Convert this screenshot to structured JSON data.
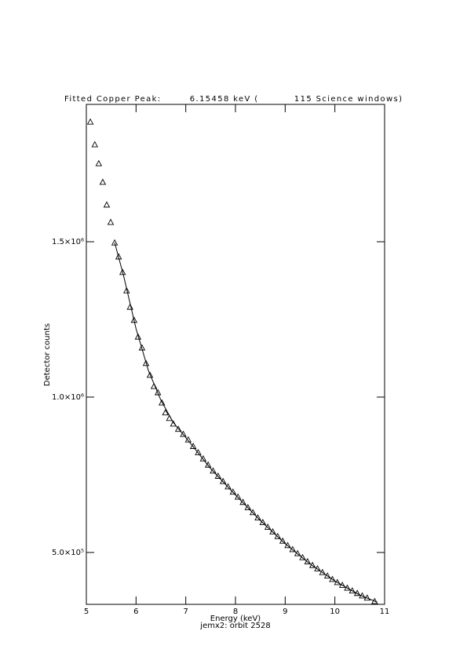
{
  "chart_data": {
    "type": "scatter",
    "title": "Fitted Copper Peak:        6.15458 keV (          115 Science windows)",
    "x_label": "Energy (keV)",
    "subtitle": "jemx2: orbit 2528",
    "y_label": "Detector counts",
    "xlim": [
      5,
      11
    ],
    "xticks": [
      5,
      6,
      7,
      8,
      9,
      10,
      11
    ],
    "ylim": [
      333000,
      1942000
    ],
    "yticks": [
      {
        "value": 500000,
        "label": "5.0×10⁵"
      },
      {
        "value": 1000000,
        "label": "1.0×10⁶"
      },
      {
        "value": 1500000,
        "label": "1.5×10⁶"
      }
    ],
    "color": "#000000",
    "series": [
      {
        "type": "scatter",
        "marker": "triangle",
        "x": [
          5.08,
          5.17,
          5.25,
          5.33,
          5.41,
          5.49,
          5.57,
          5.65,
          5.73,
          5.81,
          5.88,
          5.96,
          6.04,
          6.12,
          6.2,
          6.28,
          6.36,
          6.44,
          6.52,
          6.59,
          6.67,
          6.75,
          6.85,
          6.95,
          7.05,
          7.15,
          7.25,
          7.35,
          7.45,
          7.55,
          7.65,
          7.75,
          7.85,
          7.95,
          8.05,
          8.15,
          8.25,
          8.35,
          8.45,
          8.55,
          8.65,
          8.75,
          8.85,
          8.95,
          9.05,
          9.15,
          9.25,
          9.35,
          9.45,
          9.55,
          9.65,
          9.75,
          9.85,
          9.95,
          10.05,
          10.15,
          10.25,
          10.35,
          10.45,
          10.55,
          10.65,
          10.8
        ],
        "values": [
          1886000,
          1813000,
          1752000,
          1692000,
          1619000,
          1563000,
          1497000,
          1452000,
          1402000,
          1343000,
          1290000,
          1248000,
          1194000,
          1159000,
          1109000,
          1071000,
          1035000,
          1015000,
          982000,
          950000,
          932000,
          914000,
          897000,
          881000,
          863000,
          842000,
          822000,
          802000,
          782000,
          763000,
          746000,
          729000,
          712000,
          695000,
          679000,
          662000,
          645000,
          629000,
          612000,
          597000,
          582000,
          567000,
          552000,
          537000,
          523000,
          510000,
          497000,
          484000,
          471000,
          459000,
          448000,
          436000,
          425000,
          414000,
          404000,
          395000,
          386000,
          377000,
          369000,
          361000,
          354000,
          343000
        ]
      },
      {
        "type": "line",
        "x": [
          5.57,
          5.75,
          6.0,
          6.25,
          6.5,
          6.75,
          7.0,
          7.5,
          8.0,
          8.5,
          9.0,
          9.5,
          10.0,
          10.5,
          10.85
        ],
        "values": [
          1497000,
          1390000,
          1220000,
          1085000,
          990000,
          918000,
          870000,
          770000,
          685000,
          603000,
          528000,
          463000,
          408000,
          363000,
          340000
        ]
      }
    ]
  }
}
